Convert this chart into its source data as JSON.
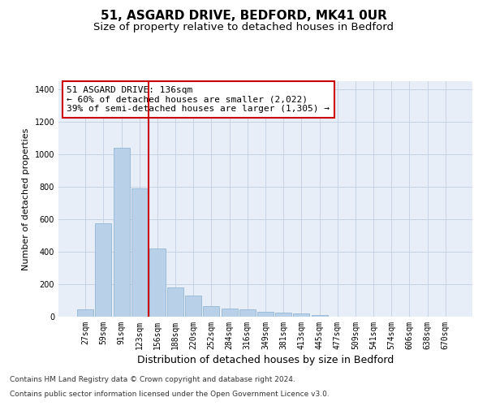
{
  "title1": "51, ASGARD DRIVE, BEDFORD, MK41 0UR",
  "title2": "Size of property relative to detached houses in Bedford",
  "xlabel": "Distribution of detached houses by size in Bedford",
  "ylabel": "Number of detached properties",
  "categories": [
    "27sqm",
    "59sqm",
    "91sqm",
    "123sqm",
    "156sqm",
    "188sqm",
    "220sqm",
    "252sqm",
    "284sqm",
    "316sqm",
    "349sqm",
    "381sqm",
    "413sqm",
    "445sqm",
    "477sqm",
    "509sqm",
    "541sqm",
    "574sqm",
    "606sqm",
    "638sqm",
    "670sqm"
  ],
  "values": [
    47,
    573,
    1040,
    790,
    422,
    178,
    128,
    63,
    50,
    45,
    28,
    26,
    20,
    10,
    0,
    0,
    0,
    0,
    0,
    0,
    0
  ],
  "bar_color": "#b8d0e8",
  "bar_edge_color": "#8ab0d0",
  "vline_color": "#cc0000",
  "vline_pos": 3.5,
  "annotation_text": "51 ASGARD DRIVE: 136sqm\n← 60% of detached houses are smaller (2,022)\n39% of semi-detached houses are larger (1,305) →",
  "annotation_box_color": "#cc0000",
  "ylim": [
    0,
    1450
  ],
  "yticks": [
    0,
    200,
    400,
    600,
    800,
    1000,
    1200,
    1400
  ],
  "grid_color": "#c8d4e4",
  "bg_color": "#e8eef8",
  "footer_line1": "Contains HM Land Registry data © Crown copyright and database right 2024.",
  "footer_line2": "Contains public sector information licensed under the Open Government Licence v3.0.",
  "title1_fontsize": 11,
  "title2_fontsize": 9.5,
  "xlabel_fontsize": 9,
  "ylabel_fontsize": 8,
  "tick_fontsize": 7,
  "annotation_fontsize": 8,
  "footer_fontsize": 6.5
}
